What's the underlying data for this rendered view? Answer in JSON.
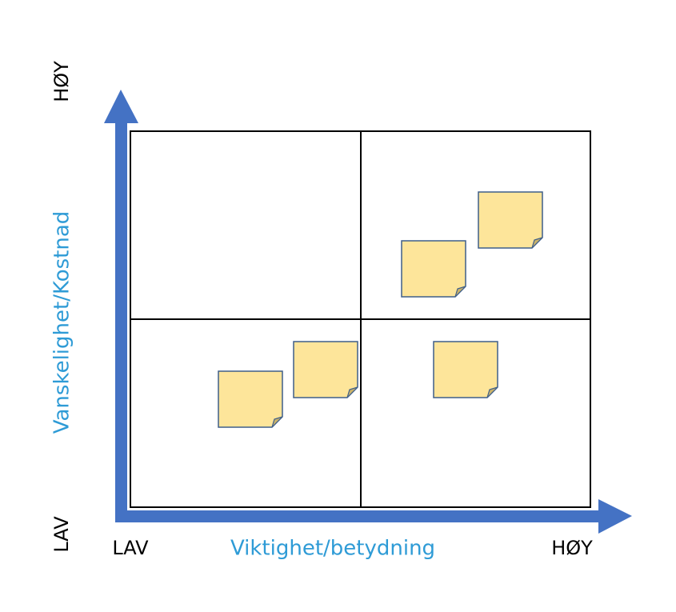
{
  "y_axis": {
    "high": "HØY",
    "low": "LAV",
    "title": "Vanskelighet/Kostnad"
  },
  "x_axis": {
    "low": "LAV",
    "title": "Viktighet/betydning",
    "high": "HØY"
  }
}
